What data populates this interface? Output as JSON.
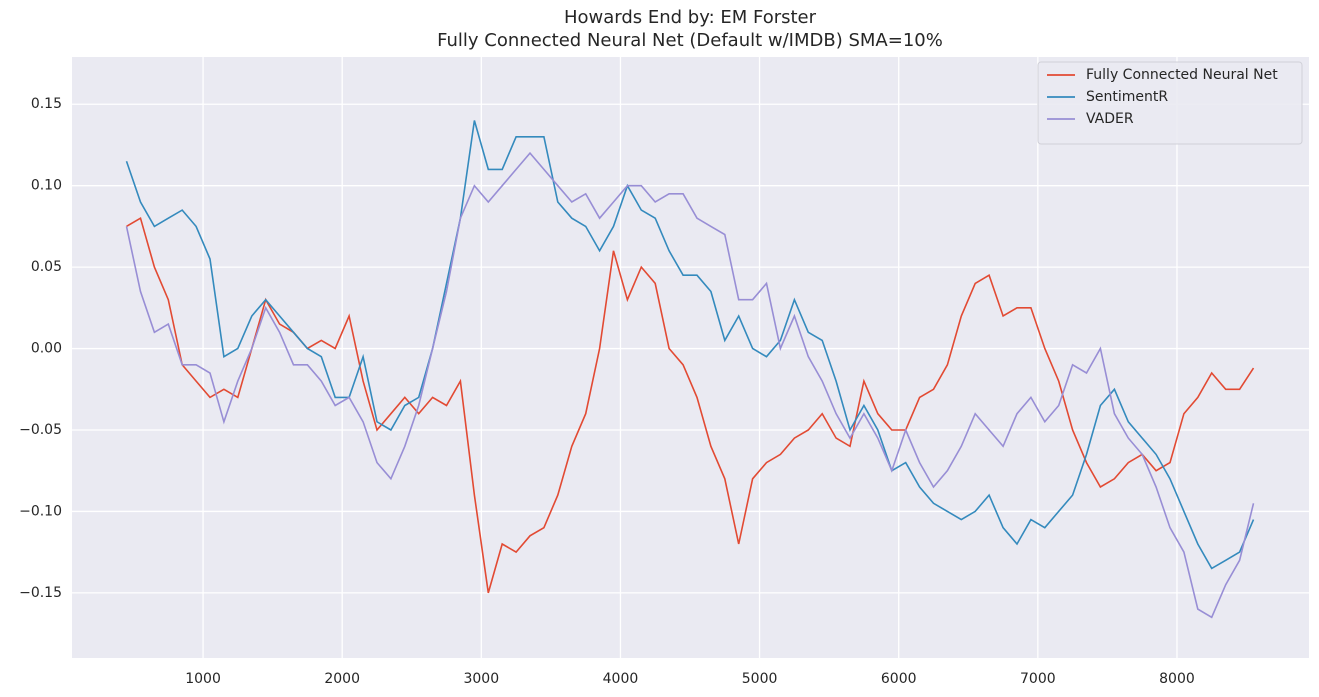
{
  "chart_data": {
    "type": "line",
    "title": "Howards End by: EM Forster",
    "subtitle": "Fully Connected Neural Net (Default w/IMDB) SMA=10%",
    "x": [
      450,
      550,
      650,
      750,
      850,
      950,
      1050,
      1150,
      1250,
      1350,
      1450,
      1550,
      1650,
      1750,
      1850,
      1950,
      2050,
      2150,
      2250,
      2350,
      2450,
      2550,
      2650,
      2750,
      2850,
      2950,
      3050,
      3150,
      3250,
      3350,
      3450,
      3550,
      3650,
      3750,
      3850,
      3950,
      4050,
      4150,
      4250,
      4350,
      4450,
      4550,
      4650,
      4750,
      4850,
      4950,
      5050,
      5150,
      5250,
      5350,
      5450,
      5550,
      5650,
      5750,
      5850,
      5950,
      6050,
      6150,
      6250,
      6350,
      6450,
      6550,
      6650,
      6750,
      6850,
      6950,
      7050,
      7150,
      7250,
      7350,
      7450,
      7550,
      7650,
      7750,
      7850,
      7950,
      8050,
      8150,
      8250,
      8350,
      8450,
      8550
    ],
    "series": [
      {
        "name": "Fully Connected Neural Net",
        "color": "#e24a33",
        "values": [
          0.075,
          0.08,
          0.05,
          0.03,
          -0.01,
          -0.02,
          -0.03,
          -0.025,
          -0.03,
          0.0,
          0.03,
          0.015,
          0.01,
          0.0,
          0.005,
          0.0,
          0.02,
          -0.02,
          -0.05,
          -0.04,
          -0.03,
          -0.04,
          -0.03,
          -0.035,
          -0.02,
          -0.09,
          -0.15,
          -0.12,
          -0.125,
          -0.115,
          -0.11,
          -0.09,
          -0.06,
          -0.04,
          0.0,
          0.06,
          0.03,
          0.05,
          0.04,
          0.0,
          -0.01,
          -0.03,
          -0.06,
          -0.08,
          -0.12,
          -0.08,
          -0.07,
          -0.065,
          -0.055,
          -0.05,
          -0.04,
          -0.055,
          -0.06,
          -0.02,
          -0.04,
          -0.05,
          -0.05,
          -0.03,
          -0.025,
          -0.01,
          0.02,
          0.04,
          0.045,
          0.02,
          0.025,
          0.025,
          0.0,
          -0.02,
          -0.05,
          -0.07,
          -0.085,
          -0.08,
          -0.07,
          -0.065,
          -0.075,
          -0.07,
          -0.04,
          -0.03,
          -0.015,
          -0.025,
          -0.025,
          -0.012
        ]
      },
      {
        "name": "SentimentR",
        "color": "#348abd",
        "values": [
          0.115,
          0.09,
          0.075,
          0.08,
          0.085,
          0.075,
          0.055,
          -0.005,
          0.0,
          0.02,
          0.03,
          0.02,
          0.01,
          0.0,
          -0.005,
          -0.03,
          -0.03,
          -0.005,
          -0.045,
          -0.05,
          -0.035,
          -0.03,
          0.0,
          0.04,
          0.08,
          0.14,
          0.11,
          0.11,
          0.13,
          0.13,
          0.13,
          0.09,
          0.08,
          0.075,
          0.06,
          0.075,
          0.1,
          0.085,
          0.08,
          0.06,
          0.045,
          0.045,
          0.035,
          0.005,
          0.02,
          0.0,
          -0.005,
          0.005,
          0.03,
          0.01,
          0.005,
          -0.02,
          -0.05,
          -0.035,
          -0.05,
          -0.075,
          -0.07,
          -0.085,
          -0.095,
          -0.1,
          -0.105,
          -0.1,
          -0.09,
          -0.11,
          -0.12,
          -0.105,
          -0.11,
          -0.1,
          -0.09,
          -0.065,
          -0.035,
          -0.025,
          -0.045,
          -0.055,
          -0.065,
          -0.08,
          -0.1,
          -0.12,
          -0.135,
          -0.13,
          -0.125,
          -0.105
        ]
      },
      {
        "name": "VADER",
        "color": "#988ed5",
        "values": [
          0.075,
          0.035,
          0.01,
          0.015,
          -0.01,
          -0.01,
          -0.015,
          -0.045,
          -0.02,
          0.0,
          0.025,
          0.01,
          -0.01,
          -0.01,
          -0.02,
          -0.035,
          -0.03,
          -0.045,
          -0.07,
          -0.08,
          -0.06,
          -0.035,
          0.0,
          0.035,
          0.08,
          0.1,
          0.09,
          0.1,
          0.11,
          0.12,
          0.11,
          0.1,
          0.09,
          0.095,
          0.08,
          0.09,
          0.1,
          0.1,
          0.09,
          0.095,
          0.095,
          0.08,
          0.075,
          0.07,
          0.03,
          0.03,
          0.04,
          0.0,
          0.02,
          -0.005,
          -0.02,
          -0.04,
          -0.055,
          -0.04,
          -0.055,
          -0.075,
          -0.05,
          -0.07,
          -0.085,
          -0.075,
          -0.06,
          -0.04,
          -0.05,
          -0.06,
          -0.04,
          -0.03,
          -0.045,
          -0.035,
          -0.01,
          -0.015,
          0.0,
          -0.04,
          -0.055,
          -0.065,
          -0.085,
          -0.11,
          -0.125,
          -0.16,
          -0.165,
          -0.145,
          -0.13,
          -0.095
        ]
      }
    ],
    "xlim": [
      58,
      8949
    ],
    "ylim": [
      -0.19,
      0.179
    ],
    "xticks": [
      1000,
      2000,
      3000,
      4000,
      5000,
      6000,
      7000,
      8000
    ],
    "yticks": [
      0.15,
      {
        "value": 0.1,
        "label": "0.10"
      },
      {
        "value": 0.05,
        "label": "0.05"
      },
      {
        "value": 0,
        "label": "0.00"
      },
      {
        "value": -0.05,
        "label": "−0.05"
      },
      {
        "value": -0.1,
        "label": "−0.10"
      },
      {
        "value": -0.15,
        "label": "−0.15"
      }
    ],
    "grid": true,
    "legend": "upper-right"
  }
}
